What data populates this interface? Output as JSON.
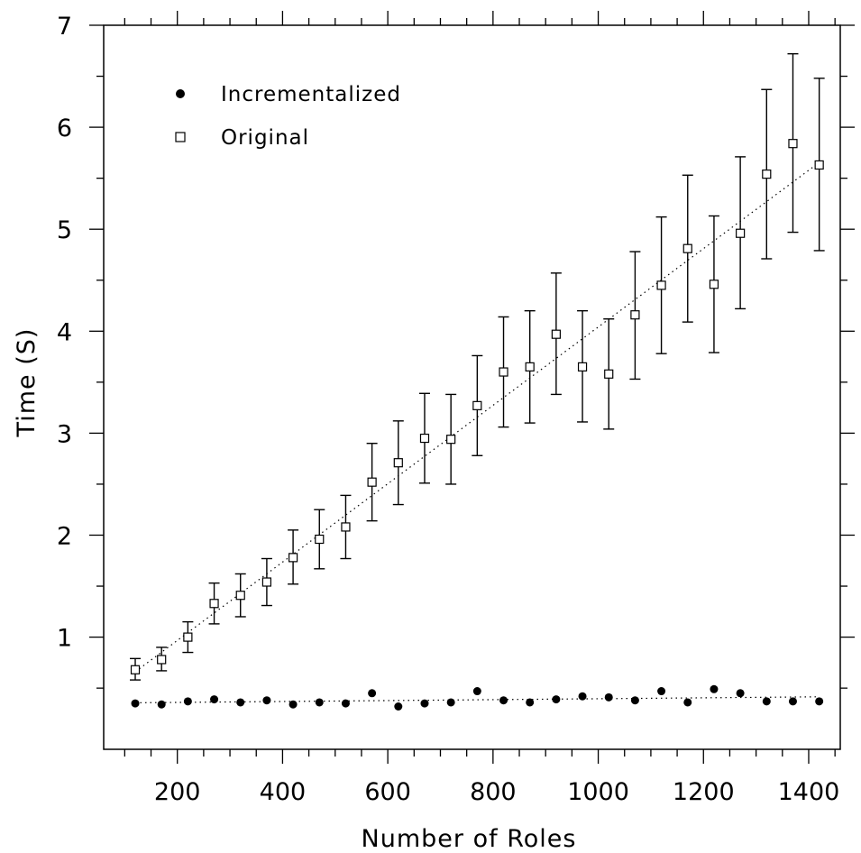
{
  "chart_data": {
    "type": "scatter",
    "title": "",
    "xlabel": "Number of Roles",
    "ylabel": "Time (S)",
    "xlim": [
      60,
      1460
    ],
    "ylim": [
      -0.1,
      7.0
    ],
    "xticks_labeled": [
      200,
      400,
      600,
      800,
      1000,
      1200,
      1400
    ],
    "yticks_labeled": [
      1,
      2,
      3,
      4,
      5,
      6,
      7
    ],
    "grid": false,
    "legend_position": "top-left",
    "series": [
      {
        "name": "Incrementalized",
        "marker": "filled-circle",
        "trend": "dotted-linear",
        "x": [
          120,
          170,
          220,
          270,
          320,
          370,
          420,
          470,
          520,
          570,
          620,
          670,
          720,
          770,
          820,
          870,
          920,
          970,
          1020,
          1070,
          1120,
          1170,
          1220,
          1270,
          1320,
          1370,
          1420
        ],
        "y": [
          0.35,
          0.34,
          0.37,
          0.39,
          0.36,
          0.38,
          0.34,
          0.36,
          0.35,
          0.45,
          0.32,
          0.35,
          0.36,
          0.47,
          0.38,
          0.36,
          0.39,
          0.42,
          0.41,
          0.38,
          0.47,
          0.36,
          0.49,
          0.45,
          0.37,
          0.37,
          0.37
        ]
      },
      {
        "name": "Original",
        "marker": "open-square",
        "trend": "dotted-linear",
        "x": [
          120,
          170,
          220,
          270,
          320,
          370,
          420,
          470,
          520,
          570,
          620,
          670,
          720,
          770,
          820,
          870,
          920,
          970,
          1020,
          1070,
          1120,
          1170,
          1220,
          1270,
          1320,
          1370,
          1420
        ],
        "y": [
          0.68,
          0.78,
          1.0,
          1.33,
          1.41,
          1.54,
          1.78,
          1.96,
          2.08,
          2.52,
          2.71,
          2.95,
          2.94,
          3.27,
          3.6,
          3.65,
          3.97,
          3.65,
          3.58,
          4.16,
          4.45,
          4.81,
          4.46,
          4.96,
          5.54,
          5.84,
          5.63
        ],
        "err_low": [
          0.58,
          0.67,
          0.85,
          1.13,
          1.2,
          1.31,
          1.52,
          1.67,
          1.77,
          2.14,
          2.3,
          2.51,
          2.5,
          2.78,
          3.06,
          3.1,
          3.38,
          3.11,
          3.04,
          3.53,
          3.78,
          4.09,
          3.79,
          4.22,
          4.71,
          4.97,
          4.79
        ],
        "err_high": [
          0.79,
          0.9,
          1.15,
          1.53,
          1.62,
          1.77,
          2.05,
          2.25,
          2.39,
          2.9,
          3.12,
          3.39,
          3.38,
          3.76,
          4.14,
          4.2,
          4.57,
          4.2,
          4.12,
          4.78,
          5.12,
          5.53,
          5.13,
          5.71,
          6.37,
          6.72,
          6.48
        ]
      }
    ]
  }
}
